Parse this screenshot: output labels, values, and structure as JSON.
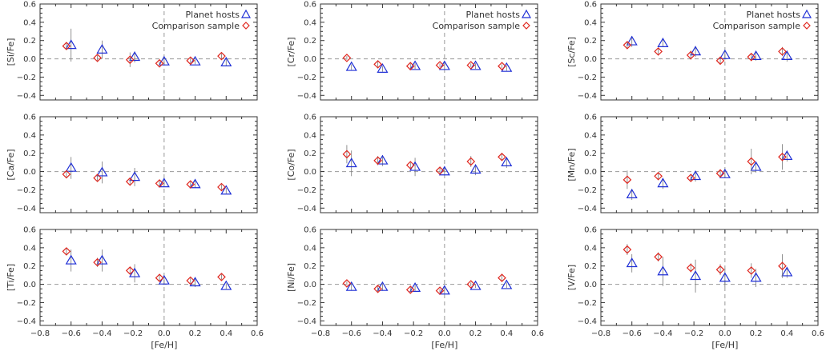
{
  "legend": {
    "planet_hosts": "Planet hosts",
    "comparison_sample": "Comparison sample"
  },
  "colors": {
    "planet_hosts": "#1f2fd6",
    "comparison_sample": "#e0271f",
    "axis": "#333333",
    "dashed": "#999999",
    "errorbar": "#777777"
  },
  "chart_data": [
    {
      "type": "scatter",
      "ylabel": "[Si/Fe]",
      "xlabel": "",
      "xlim": [
        -0.8,
        0.6
      ],
      "ylim": [
        -0.45,
        0.6
      ],
      "legend": true,
      "series": [
        {
          "name": "Planet hosts",
          "x": [
            -0.6,
            -0.4,
            -0.19,
            0.0,
            0.2,
            0.4
          ],
          "y": [
            0.15,
            0.1,
            0.02,
            -0.03,
            -0.03,
            -0.04
          ],
          "err": [
            0.18,
            0.1,
            0.06,
            0.04,
            0.03,
            0.04
          ]
        },
        {
          "name": "Comparison sample",
          "x": [
            -0.63,
            -0.43,
            -0.22,
            -0.03,
            0.17,
            0.37
          ],
          "y": [
            0.14,
            0.01,
            -0.01,
            -0.05,
            -0.02,
            0.03
          ],
          "err": [
            0.03,
            0.03,
            0.08,
            0.02,
            0.03,
            0.03
          ]
        }
      ]
    },
    {
      "type": "scatter",
      "ylabel": "[Cr/Fe]",
      "xlabel": "",
      "xlim": [
        -0.8,
        0.6
      ],
      "ylim": [
        -0.45,
        0.6
      ],
      "legend": true,
      "series": [
        {
          "name": "Planet hosts",
          "x": [
            -0.6,
            -0.4,
            -0.19,
            0.0,
            0.2,
            0.4
          ],
          "y": [
            -0.09,
            -0.11,
            -0.08,
            -0.08,
            -0.08,
            -0.1
          ],
          "err": [
            0.03,
            0.03,
            0.03,
            0.03,
            0.03,
            0.03
          ]
        },
        {
          "name": "Comparison sample",
          "x": [
            -0.63,
            -0.43,
            -0.22,
            -0.03,
            0.17,
            0.37
          ],
          "y": [
            0.01,
            -0.06,
            -0.08,
            -0.07,
            -0.07,
            -0.08
          ],
          "err": [
            0.02,
            0.03,
            0.03,
            0.02,
            0.02,
            0.02
          ]
        }
      ]
    },
    {
      "type": "scatter",
      "ylabel": "[Sc/Fe]",
      "xlabel": "",
      "xlim": [
        -0.8,
        0.6
      ],
      "ylim": [
        -0.45,
        0.6
      ],
      "legend": true,
      "series": [
        {
          "name": "Planet hosts",
          "x": [
            -0.6,
            -0.4,
            -0.19,
            0.0,
            0.2,
            0.4
          ],
          "y": [
            0.19,
            0.17,
            0.08,
            0.04,
            0.03,
            0.03
          ],
          "err": [
            0.06,
            0.04,
            0.06,
            0.05,
            0.05,
            0.06
          ]
        },
        {
          "name": "Comparison sample",
          "x": [
            -0.63,
            -0.43,
            -0.22,
            -0.03,
            0.17,
            0.37
          ],
          "y": [
            0.15,
            0.08,
            0.04,
            -0.02,
            0.02,
            0.08
          ],
          "err": [
            0.03,
            0.03,
            0.05,
            0.04,
            0.04,
            0.05
          ]
        }
      ]
    },
    {
      "type": "scatter",
      "ylabel": "[Ca/Fe]",
      "xlabel": "",
      "xlim": [
        -0.8,
        0.6
      ],
      "ylim": [
        -0.45,
        0.6
      ],
      "legend": false,
      "series": [
        {
          "name": "Planet hosts",
          "x": [
            -0.6,
            -0.4,
            -0.19,
            0.0,
            0.2,
            0.4
          ],
          "y": [
            0.04,
            -0.01,
            -0.06,
            -0.13,
            -0.14,
            -0.21
          ],
          "err": [
            0.12,
            0.12,
            0.1,
            0.04,
            0.04,
            0.03
          ]
        },
        {
          "name": "Comparison sample",
          "x": [
            -0.63,
            -0.43,
            -0.22,
            -0.03,
            0.17,
            0.37
          ],
          "y": [
            -0.03,
            -0.07,
            -0.11,
            -0.13,
            -0.14,
            -0.17
          ],
          "err": [
            0.03,
            0.03,
            0.03,
            0.03,
            0.03,
            0.03
          ]
        }
      ]
    },
    {
      "type": "scatter",
      "ylabel": "[Co/Fe]",
      "xlabel": "",
      "xlim": [
        -0.8,
        0.6
      ],
      "ylim": [
        -0.45,
        0.6
      ],
      "legend": false,
      "series": [
        {
          "name": "Planet hosts",
          "x": [
            -0.6,
            -0.4,
            -0.19,
            0.0,
            0.2,
            0.4
          ],
          "y": [
            0.09,
            0.12,
            0.05,
            0.0,
            0.02,
            0.1
          ],
          "err": [
            0.14,
            0.06,
            0.1,
            0.04,
            0.06,
            0.06
          ]
        },
        {
          "name": "Comparison sample",
          "x": [
            -0.63,
            -0.43,
            -0.22,
            -0.03,
            0.17,
            0.37
          ],
          "y": [
            0.19,
            0.12,
            0.07,
            0.01,
            0.11,
            0.16
          ],
          "err": [
            0.1,
            0.05,
            0.03,
            0.03,
            0.06,
            0.04
          ]
        }
      ]
    },
    {
      "type": "scatter",
      "ylabel": "[Mn/Fe]",
      "xlabel": "",
      "xlim": [
        -0.8,
        0.6
      ],
      "ylim": [
        -0.45,
        0.6
      ],
      "legend": false,
      "series": [
        {
          "name": "Planet hosts",
          "x": [
            -0.6,
            -0.4,
            -0.19,
            0.0,
            0.2,
            0.4
          ],
          "y": [
            -0.25,
            -0.13,
            -0.05,
            -0.03,
            0.05,
            0.17
          ],
          "err": [
            0.06,
            0.06,
            0.06,
            0.04,
            0.06,
            0.06
          ]
        },
        {
          "name": "Comparison sample",
          "x": [
            -0.63,
            -0.43,
            -0.22,
            -0.03,
            0.17,
            0.37
          ],
          "y": [
            -0.09,
            -0.05,
            -0.07,
            -0.02,
            0.11,
            0.16
          ],
          "err": [
            0.1,
            0.04,
            0.03,
            0.03,
            0.14,
            0.14
          ]
        }
      ]
    },
    {
      "type": "scatter",
      "ylabel": "[Ti/Fe]",
      "xlabel": "",
      "xlim": [
        -0.8,
        0.6
      ],
      "ylim": [
        -0.45,
        0.6
      ],
      "legend": false,
      "series": [
        {
          "name": "Planet hosts",
          "x": [
            -0.6,
            -0.4,
            -0.19,
            0.0,
            0.2,
            0.4
          ],
          "y": [
            0.26,
            0.26,
            0.12,
            0.04,
            0.02,
            -0.02
          ],
          "err": [
            0.12,
            0.12,
            0.1,
            0.04,
            0.05,
            0.03
          ]
        },
        {
          "name": "Comparison sample",
          "x": [
            -0.63,
            -0.43,
            -0.22,
            -0.03,
            0.17,
            0.37
          ],
          "y": [
            0.36,
            0.24,
            0.15,
            0.07,
            0.04,
            0.08
          ],
          "err": [
            0.04,
            0.05,
            0.04,
            0.03,
            0.03,
            0.03
          ]
        }
      ]
    },
    {
      "type": "scatter",
      "ylabel": "[Ni/Fe]",
      "xlabel": "",
      "xlim": [
        -0.8,
        0.6
      ],
      "ylim": [
        -0.45,
        0.6
      ],
      "legend": false,
      "series": [
        {
          "name": "Planet hosts",
          "x": [
            -0.6,
            -0.4,
            -0.19,
            0.0,
            0.2,
            0.4
          ],
          "y": [
            -0.03,
            -0.03,
            -0.04,
            -0.07,
            -0.02,
            -0.01
          ],
          "err": [
            0.04,
            0.04,
            0.03,
            0.03,
            0.02,
            0.03
          ]
        },
        {
          "name": "Comparison sample",
          "x": [
            -0.63,
            -0.43,
            -0.22,
            -0.03,
            0.17,
            0.37
          ],
          "y": [
            0.01,
            -0.05,
            -0.06,
            -0.07,
            0.0,
            0.07
          ],
          "err": [
            0.02,
            0.04,
            0.03,
            0.02,
            0.02,
            0.03
          ]
        }
      ]
    },
    {
      "type": "scatter",
      "ylabel": "[V/Fe]",
      "xlabel": "",
      "xlim": [
        -0.8,
        0.6
      ],
      "ylim": [
        -0.45,
        0.6
      ],
      "legend": false,
      "series": [
        {
          "name": "Planet hosts",
          "x": [
            -0.6,
            -0.4,
            -0.19,
            0.0,
            0.2,
            0.4
          ],
          "y": [
            0.23,
            0.14,
            0.09,
            0.07,
            0.07,
            0.13
          ],
          "err": [
            0.1,
            0.16,
            0.18,
            0.1,
            0.1,
            0.06
          ]
        },
        {
          "name": "Comparison sample",
          "x": [
            -0.63,
            -0.43,
            -0.22,
            -0.03,
            0.17,
            0.37
          ],
          "y": [
            0.38,
            0.3,
            0.18,
            0.16,
            0.15,
            0.2
          ],
          "err": [
            0.06,
            0.05,
            0.05,
            0.06,
            0.08,
            0.13
          ]
        }
      ]
    }
  ],
  "shared_axes": {
    "xlabel": "[Fe/H]",
    "xticks": [
      -0.8,
      -0.6,
      -0.4,
      -0.2,
      0.0,
      0.2,
      0.4,
      0.6
    ],
    "xtick_labels": [
      "−0.8",
      "−0.6",
      "−0.4",
      "−0.2",
      "0.0",
      "0.2",
      "0.4",
      "0.6"
    ],
    "yticks": [
      -0.4,
      -0.2,
      0.0,
      0.2,
      0.4,
      0.6
    ],
    "ytick_labels": [
      "−0.4",
      "−0.2",
      "0.0",
      "0.2",
      "0.4",
      "0.6"
    ],
    "reference_lines": {
      "x": 0.0,
      "y": 0.0
    }
  }
}
